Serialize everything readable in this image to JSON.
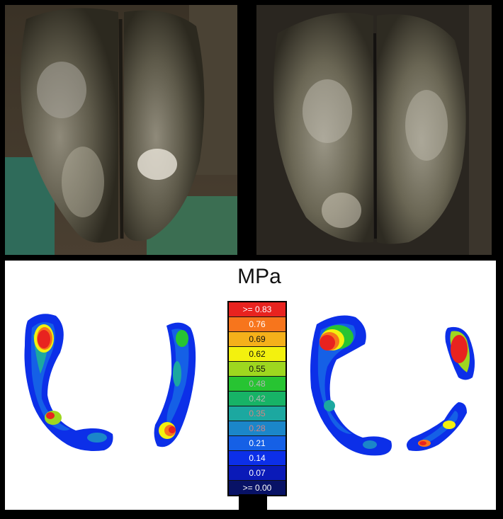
{
  "colorbar": {
    "unit": "MPa",
    "levels": [
      {
        "label": ">= 0.83",
        "color": "#e8231f",
        "text_color": "#ffffff"
      },
      {
        "label": "0.76",
        "color": "#f7751c",
        "text_color": "#ffffff"
      },
      {
        "label": "0.69",
        "color": "#f5b01a",
        "text_color": "#111111"
      },
      {
        "label": "0.62",
        "color": "#f3f10e",
        "text_color": "#111111"
      },
      {
        "label": "0.55",
        "color": "#9ed71f",
        "text_color": "#111111"
      },
      {
        "label": "0.48",
        "color": "#27c432",
        "text_color": "#b5b5b5"
      },
      {
        "label": "0.42",
        "color": "#17b366",
        "text_color": "#b5b5b5"
      },
      {
        "label": "0.35",
        "color": "#1ca8a0",
        "text_color": "#d28484"
      },
      {
        "label": "0.28",
        "color": "#1b86c9",
        "text_color": "#d28484"
      },
      {
        "label": "0.21",
        "color": "#1560e6",
        "text_color": "#ffffff"
      },
      {
        "label": "0.14",
        "color": "#0c2fe8",
        "text_color": "#ffffff"
      },
      {
        "label": "0.07",
        "color": "#0a1ab8",
        "text_color": "#ffffff"
      },
      {
        "label": ">= 0.00",
        "color": "#081266",
        "text_color": "#ffffff"
      }
    ]
  }
}
